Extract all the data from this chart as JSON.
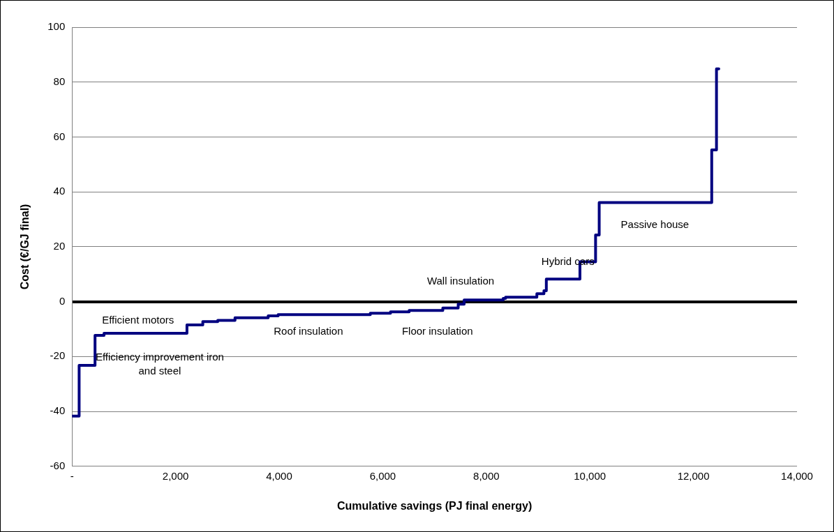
{
  "chart_data": {
    "type": "step",
    "xlabel": "Cumulative savings (PJ final energy)",
    "ylabel": "Cost (€/GJ final)",
    "x": [
      0,
      137,
      444,
      618,
      2219,
      2525,
      2814,
      3147,
      3788,
      3980,
      5760,
      6150,
      6510,
      7160,
      7457,
      7572,
      8326,
      8372,
      8976,
      9113,
      9159,
      9808,
      10110,
      10180,
      12353,
      12445,
      12490
    ],
    "series": [
      {
        "color": "#000080",
        "values": [
          -41.7,
          -23.2,
          -12.3,
          -11.5,
          -8.5,
          -7.3,
          -6.8,
          -5.9,
          -5.2,
          -4.7,
          -4.2,
          -3.7,
          -3.2,
          -2.3,
          -0.9,
          0.6,
          1.2,
          1.6,
          2.9,
          4.0,
          8.2,
          14.5,
          24.3,
          36.1,
          55.3,
          84.8,
          84.8
        ]
      }
    ],
    "xlim": [
      0,
      14000
    ],
    "xticks": [
      {
        "value": 0,
        "label": "-"
      },
      {
        "value": 2000,
        "label": "2,000"
      },
      {
        "value": 4000,
        "label": "4,000"
      },
      {
        "value": 6000,
        "label": "6,000"
      },
      {
        "value": 8000,
        "label": "8,000"
      },
      {
        "value": 10000,
        "label": "10,000"
      },
      {
        "value": 12000,
        "label": "12,000"
      },
      {
        "value": 14000,
        "label": "14,000"
      }
    ],
    "ylim": [
      -60,
      100
    ],
    "yticks": [
      -60,
      -40,
      -20,
      0,
      20,
      40,
      60,
      80,
      100
    ],
    "grid": "y",
    "legend": false,
    "marker": "none",
    "line_style": "solid",
    "annotations": [
      "Efficient motors",
      "Efficiency improvement iron\nand steel",
      "Roof insulation",
      "Floor insulation",
      "Wall insulation",
      "Hybrid cars",
      "Passive house"
    ]
  }
}
